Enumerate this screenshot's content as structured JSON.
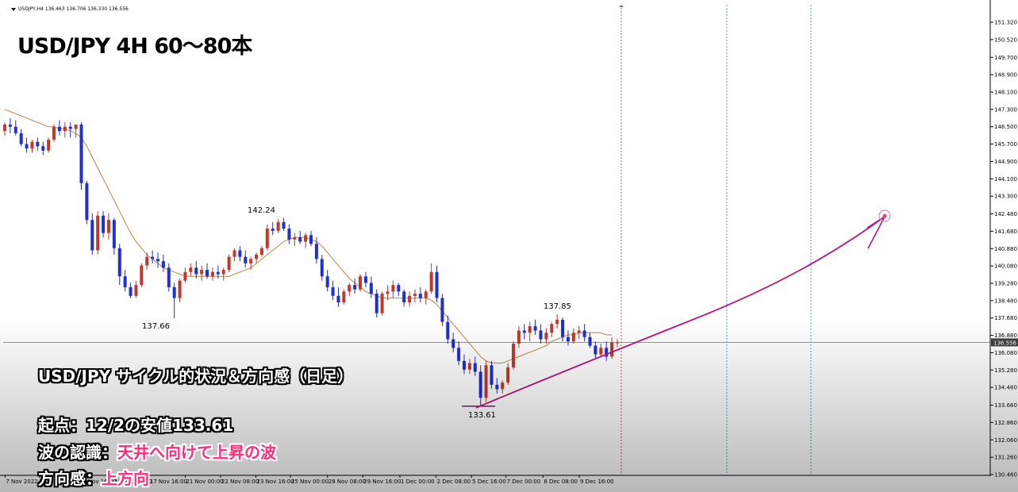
{
  "header": {
    "symbol_info": "USDJPY,H4  136.463 136.706 136.330 136.556"
  },
  "title": "USD/JPY 4H 60～80本",
  "annotation": {
    "heading": "USD/JPY サイクル的状況＆方向感（日足）",
    "line1": "起点：12/2の安値133.61",
    "line2_label": "波の認識：",
    "line2_value": "天井へ向けて上昇の波",
    "line3_label": "方向感：",
    "line3_value": "上方向"
  },
  "chart_data": {
    "type": "candlestick",
    "symbol": "USDJPY",
    "timeframe": "H4",
    "ylim": [
      130.46,
      152.12
    ],
    "y_ticks": [
      "151.320",
      "150.520",
      "149.700",
      "148.900",
      "148.100",
      "147.300",
      "146.500",
      "145.700",
      "144.900",
      "144.100",
      "143.300",
      "142.480",
      "141.680",
      "140.880",
      "140.080",
      "139.280",
      "138.480",
      "137.680",
      "136.880",
      "136.080",
      "135.280",
      "134.480",
      "133.660",
      "132.860",
      "132.060",
      "131.260",
      "130.460"
    ],
    "current_price": "136.556",
    "x_ticks": [
      "7 Nov 2022",
      "11 Nov 04:00",
      "14 Nov 16:00",
      "16 Nov 08:00",
      "17 Nov 16:00",
      "21 Nov 00:00",
      "22 Nov 08:00",
      "23 Nov 16:00",
      "25 Nov 00:00",
      "28 Nov 08:00",
      "29 Nov 16:00",
      "1 Dec 00:00",
      "2 Dec 08:00",
      "5 Dec 16:00",
      "7 Dec 00:00",
      "8 Dec 08:00",
      "9 Dec 16:00"
    ],
    "price_labels": [
      "142.24",
      "137.66",
      "137.85",
      "133.61"
    ],
    "candles": [
      [
        146.3,
        146.7,
        146.1,
        146.6
      ],
      [
        146.6,
        146.9,
        146.2,
        146.5
      ],
      [
        146.5,
        146.8,
        146.1,
        146.2
      ],
      [
        146.2,
        146.4,
        145.6,
        145.7
      ],
      [
        145.7,
        146.0,
        145.3,
        145.5
      ],
      [
        145.5,
        145.9,
        145.3,
        145.8
      ],
      [
        145.8,
        146.0,
        145.4,
        145.6
      ],
      [
        145.6,
        145.8,
        145.2,
        145.4
      ],
      [
        145.4,
        146.0,
        145.3,
        145.9
      ],
      [
        145.9,
        146.6,
        145.8,
        146.5
      ],
      [
        146.5,
        146.8,
        146.1,
        146.3
      ],
      [
        146.3,
        146.7,
        146.0,
        146.5
      ],
      [
        146.5,
        146.7,
        146.0,
        146.4
      ],
      [
        146.4,
        146.6,
        146.0,
        146.6
      ],
      [
        146.6,
        146.7,
        143.6,
        143.9
      ],
      [
        143.9,
        144.0,
        142.0,
        142.2
      ],
      [
        142.2,
        142.5,
        140.6,
        140.8
      ],
      [
        140.8,
        142.6,
        140.6,
        142.4
      ],
      [
        142.4,
        142.6,
        141.4,
        141.6
      ],
      [
        141.6,
        142.5,
        141.3,
        142.2
      ],
      [
        142.2,
        142.3,
        140.6,
        140.9
      ],
      [
        140.9,
        141.1,
        139.2,
        139.6
      ],
      [
        139.6,
        139.9,
        138.9,
        139.1
      ],
      [
        139.1,
        139.3,
        138.6,
        138.7
      ],
      [
        138.7,
        139.4,
        138.6,
        139.2
      ],
      [
        139.2,
        140.2,
        139.1,
        140.1
      ],
      [
        140.1,
        140.7,
        139.9,
        140.5
      ],
      [
        140.5,
        140.8,
        140.2,
        140.4
      ],
      [
        140.4,
        140.7,
        140.0,
        140.3
      ],
      [
        140.3,
        140.6,
        139.8,
        140.0
      ],
      [
        140.0,
        140.2,
        138.9,
        139.1
      ],
      [
        139.1,
        139.3,
        137.66,
        138.6
      ],
      [
        138.6,
        139.5,
        138.4,
        139.4
      ],
      [
        139.4,
        140.0,
        139.3,
        139.8
      ],
      [
        139.8,
        140.2,
        139.6,
        140.0
      ],
      [
        140.0,
        140.3,
        139.5,
        139.7
      ],
      [
        139.7,
        140.1,
        139.4,
        139.9
      ],
      [
        139.9,
        140.2,
        139.5,
        139.6
      ],
      [
        139.6,
        140.0,
        139.4,
        139.8
      ],
      [
        139.8,
        140.1,
        139.5,
        139.7
      ],
      [
        139.7,
        140.0,
        139.4,
        139.9
      ],
      [
        139.9,
        140.6,
        139.8,
        140.5
      ],
      [
        140.5,
        140.9,
        140.3,
        140.8
      ],
      [
        140.8,
        141.0,
        140.3,
        140.5
      ],
      [
        140.5,
        140.8,
        140.0,
        140.2
      ],
      [
        140.2,
        140.5,
        139.9,
        140.4
      ],
      [
        140.4,
        140.7,
        140.2,
        140.6
      ],
      [
        140.6,
        141.0,
        140.5,
        140.9
      ],
      [
        140.9,
        142.0,
        140.8,
        141.8
      ],
      [
        141.8,
        142.1,
        141.5,
        141.7
      ],
      [
        141.7,
        142.24,
        141.6,
        142.1
      ],
      [
        142.1,
        142.3,
        141.7,
        141.8
      ],
      [
        141.8,
        142.0,
        141.1,
        141.3
      ],
      [
        141.3,
        141.6,
        141.0,
        141.4
      ],
      [
        141.4,
        141.7,
        141.1,
        141.2
      ],
      [
        141.2,
        141.6,
        140.9,
        141.5
      ],
      [
        141.5,
        141.7,
        141.0,
        141.1
      ],
      [
        141.1,
        141.4,
        140.2,
        140.4
      ],
      [
        140.4,
        140.6,
        139.4,
        139.6
      ],
      [
        139.6,
        139.9,
        138.9,
        139.1
      ],
      [
        139.1,
        139.4,
        138.5,
        138.7
      ],
      [
        138.7,
        139.1,
        138.2,
        138.4
      ],
      [
        138.4,
        139.0,
        138.3,
        138.9
      ],
      [
        138.9,
        139.3,
        138.7,
        139.2
      ],
      [
        139.2,
        139.5,
        138.8,
        139.0
      ],
      [
        139.0,
        139.7,
        138.9,
        139.6
      ],
      [
        139.6,
        139.8,
        139.1,
        139.3
      ],
      [
        139.3,
        139.6,
        138.6,
        138.8
      ],
      [
        138.8,
        139.0,
        137.7,
        137.9
      ],
      [
        137.9,
        138.9,
        137.8,
        138.8
      ],
      [
        138.8,
        139.2,
        138.5,
        138.9
      ],
      [
        138.9,
        139.4,
        138.6,
        139.2
      ],
      [
        139.2,
        139.3,
        138.7,
        138.9
      ],
      [
        138.9,
        139.0,
        138.2,
        138.4
      ],
      [
        138.4,
        138.9,
        138.2,
        138.7
      ],
      [
        138.7,
        139.0,
        138.4,
        138.8
      ],
      [
        138.8,
        139.1,
        138.4,
        138.6
      ],
      [
        138.6,
        139.0,
        138.3,
        138.9
      ],
      [
        138.9,
        140.2,
        138.8,
        139.8
      ],
      [
        139.8,
        140.1,
        138.4,
        138.6
      ],
      [
        138.6,
        138.8,
        137.3,
        137.5
      ],
      [
        137.5,
        137.8,
        136.5,
        136.7
      ],
      [
        136.7,
        137.0,
        136.1,
        136.3
      ],
      [
        136.3,
        136.6,
        135.5,
        135.7
      ],
      [
        135.7,
        136.0,
        135.1,
        135.3
      ],
      [
        135.3,
        135.8,
        135.1,
        135.6
      ],
      [
        135.6,
        135.9,
        135.0,
        135.2
      ],
      [
        135.2,
        135.5,
        133.61,
        134.0
      ],
      [
        134.0,
        135.7,
        133.8,
        135.5
      ],
      [
        135.5,
        135.7,
        134.4,
        134.6
      ],
      [
        134.6,
        134.9,
        134.2,
        134.4
      ],
      [
        134.4,
        134.8,
        134.2,
        134.7
      ],
      [
        134.7,
        135.6,
        134.6,
        135.4
      ],
      [
        135.4,
        136.6,
        135.3,
        136.5
      ],
      [
        136.5,
        137.3,
        136.3,
        137.1
      ],
      [
        137.1,
        137.4,
        136.7,
        137.0
      ],
      [
        137.0,
        137.5,
        136.6,
        137.3
      ],
      [
        137.3,
        137.6,
        136.9,
        137.1
      ],
      [
        137.1,
        137.4,
        136.5,
        136.7
      ],
      [
        136.7,
        137.2,
        136.5,
        137.0
      ],
      [
        137.0,
        137.5,
        136.8,
        137.4
      ],
      [
        137.4,
        137.85,
        137.2,
        137.6
      ],
      [
        137.6,
        137.7,
        136.6,
        136.8
      ],
      [
        136.8,
        137.1,
        136.4,
        136.6
      ],
      [
        136.6,
        137.2,
        136.5,
        137.0
      ],
      [
        137.0,
        137.3,
        136.7,
        137.1
      ],
      [
        137.1,
        137.4,
        136.6,
        136.8
      ],
      [
        136.8,
        137.0,
        136.3,
        136.4
      ],
      [
        136.4,
        136.6,
        135.8,
        136.0
      ],
      [
        136.0,
        136.5,
        135.9,
        136.3
      ],
      [
        136.3,
        136.6,
        135.7,
        135.9
      ],
      [
        135.9,
        136.8,
        135.8,
        136.556
      ],
      [
        136.556,
        136.706,
        136.33,
        136.556
      ]
    ],
    "ma": [
      147.3,
      147.2,
      147.1,
      147.0,
      146.9,
      146.8,
      146.7,
      146.6,
      146.5,
      146.5,
      146.4,
      146.4,
      146.3,
      146.2,
      146.0,
      145.6,
      145.1,
      144.6,
      144.1,
      143.6,
      143.1,
      142.6,
      142.1,
      141.6,
      141.2,
      140.9,
      140.6,
      140.4,
      140.2,
      140.0,
      139.9,
      139.8,
      139.7,
      139.6,
      139.6,
      139.6,
      139.6,
      139.6,
      139.6,
      139.6,
      139.6,
      139.6,
      139.7,
      139.8,
      139.9,
      140.0,
      140.2,
      140.4,
      140.6,
      140.8,
      141.0,
      141.2,
      141.3,
      141.4,
      141.4,
      141.4,
      141.3,
      141.2,
      141.0,
      140.7,
      140.4,
      140.1,
      139.8,
      139.5,
      139.3,
      139.1,
      138.9,
      138.8,
      138.7,
      138.6,
      138.6,
      138.6,
      138.6,
      138.6,
      138.6,
      138.6,
      138.6,
      138.6,
      138.5,
      138.3,
      138.0,
      137.7,
      137.4,
      137.1,
      136.8,
      136.5,
      136.2,
      135.9,
      135.7,
      135.6,
      135.6,
      135.6,
      135.7,
      135.8,
      135.9,
      136.0,
      136.1,
      136.2,
      136.3,
      136.4,
      136.6,
      136.7,
      136.8,
      136.9,
      136.9,
      137.0,
      137.0,
      137.0,
      137.0,
      137.0,
      136.9,
      136.9
    ]
  }
}
